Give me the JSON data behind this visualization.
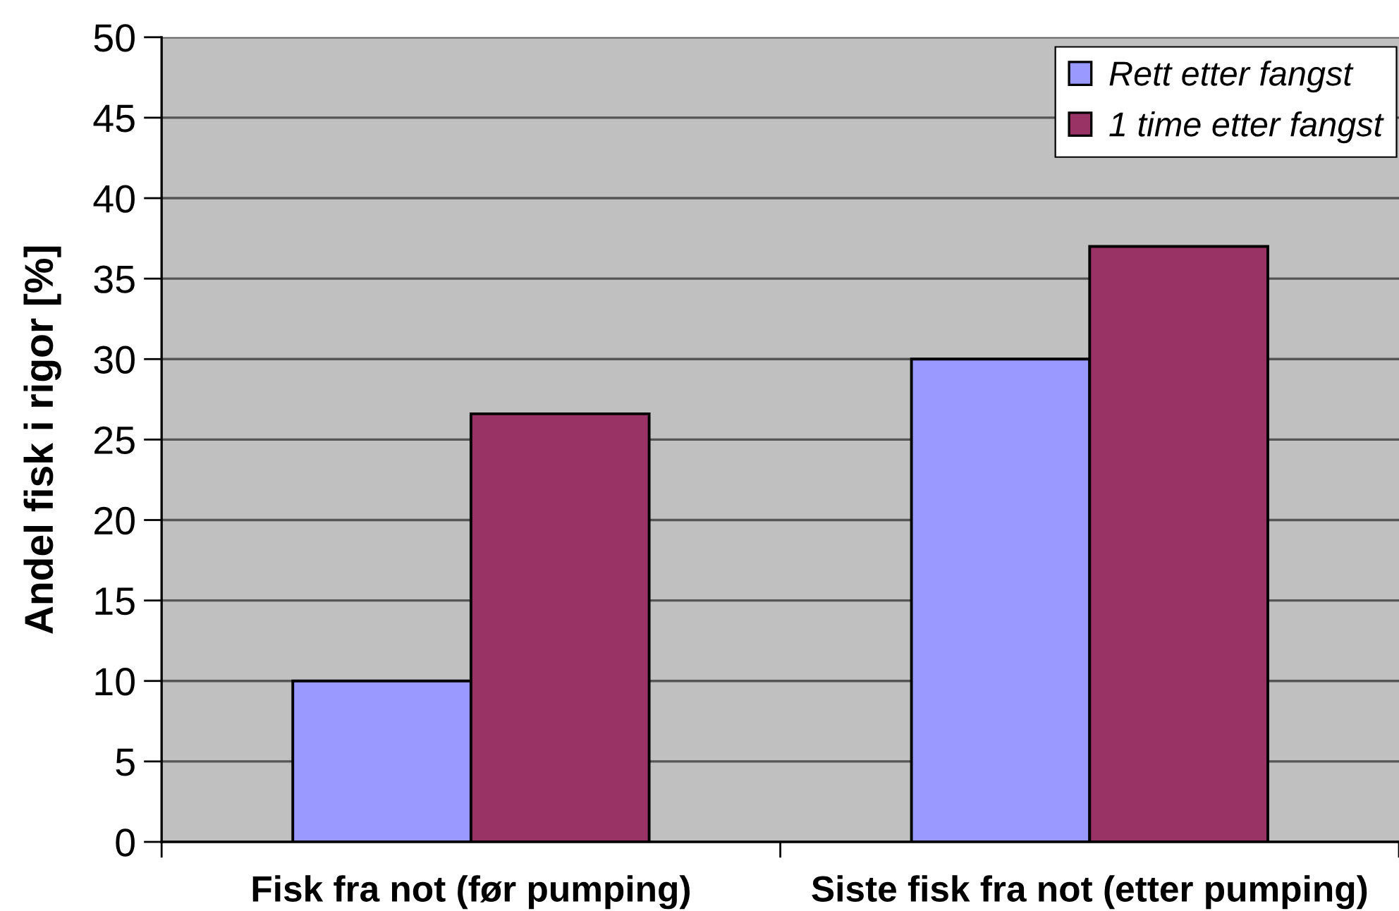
{
  "chart_data": {
    "type": "bar",
    "ylabel": "Andel fisk i rigor [%]",
    "categories": [
      "Fisk fra not (før pumping)",
      "Siste fisk fra not (etter pumping)"
    ],
    "series": [
      {
        "name": "Rett etter fangst",
        "color": "#9999ff",
        "values": [
          10,
          30
        ]
      },
      {
        "name": "1 time etter fangst",
        "color": "#993366",
        "values": [
          26.6,
          37
        ]
      }
    ],
    "ylim": [
      0,
      50
    ],
    "yticks": [
      0,
      5,
      10,
      15,
      20,
      25,
      30,
      35,
      40,
      45,
      50
    ],
    "grid": "y",
    "legend": "top right"
  }
}
